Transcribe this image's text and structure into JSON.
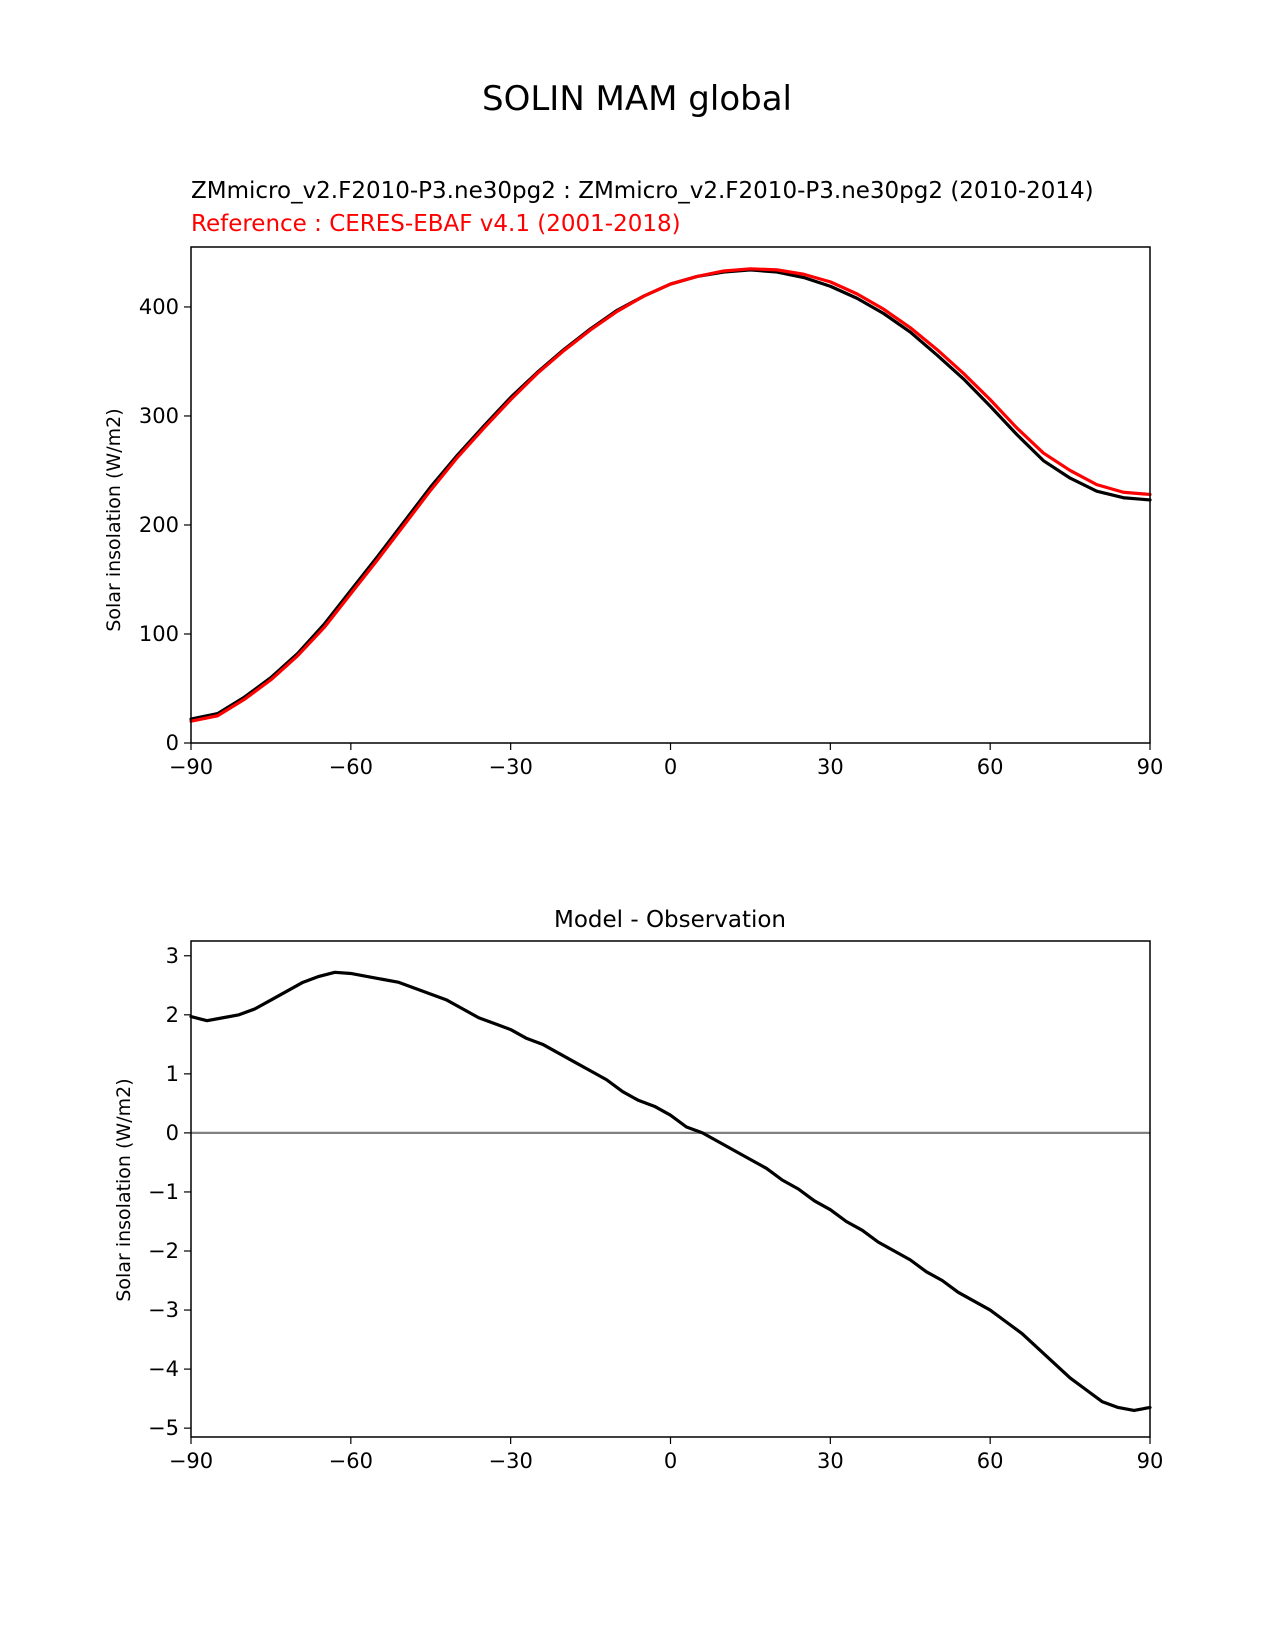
{
  "figure": {
    "suptitle": "SOLIN MAM global"
  },
  "colors": {
    "test": "#000000",
    "reference": "#ff0000",
    "zero_line": "#808080"
  },
  "chart_data": [
    {
      "type": "line",
      "title_left_line1": "ZMmicro_v2.F2010-P3.ne30pg2 : ZMmicro_v2.F2010-P3.ne30pg2 (2010-2014)",
      "title_left_line2": "Reference : CERES-EBAF v4.1 (2001-2018)",
      "xlabel": "",
      "ylabel": "Solar insolation (W/m2)",
      "xlim": [
        -90,
        90
      ],
      "ylim": [
        0,
        455
      ],
      "xticks": [
        -90,
        -60,
        -30,
        0,
        30,
        60,
        90
      ],
      "xtick_labels": [
        "−90",
        "−60",
        "−30",
        "0",
        "30",
        "60",
        "90"
      ],
      "yticks": [
        0,
        100,
        200,
        300,
        400
      ],
      "ytick_labels": [
        "0",
        "100",
        "200",
        "300",
        "400"
      ],
      "series": [
        {
          "color": "#000000",
          "x": [
            -90,
            -85,
            -80,
            -75,
            -70,
            -65,
            -60,
            -55,
            -50,
            -45,
            -40,
            -35,
            -30,
            -25,
            -20,
            -15,
            -10,
            -5,
            0,
            5,
            10,
            15,
            20,
            25,
            30,
            35,
            40,
            45,
            50,
            55,
            60,
            65,
            70,
            75,
            80,
            85,
            90
          ],
          "y": [
            22,
            27,
            42,
            60,
            82,
            109,
            140,
            171,
            203,
            235,
            264,
            291,
            317,
            340,
            361,
            380,
            397,
            410,
            421,
            428,
            432,
            434,
            432,
            427,
            419,
            408,
            394,
            377,
            356,
            334,
            309,
            283,
            259,
            243,
            231,
            225,
            223
          ]
        },
        {
          "color": "#ff0000",
          "x": [
            -90,
            -85,
            -80,
            -75,
            -70,
            -65,
            -60,
            -55,
            -50,
            -45,
            -40,
            -35,
            -30,
            -25,
            -20,
            -15,
            -10,
            -5,
            0,
            5,
            10,
            15,
            20,
            25,
            30,
            35,
            40,
            45,
            50,
            55,
            60,
            65,
            70,
            75,
            80,
            85,
            90
          ],
          "y": [
            20,
            25,
            40,
            58,
            80,
            106,
            137,
            168,
            200,
            232,
            262,
            289,
            315,
            339,
            360,
            379,
            396,
            410,
            421,
            428,
            433,
            435,
            434,
            430,
            423,
            412,
            398,
            381,
            361,
            339,
            315,
            289,
            266,
            250,
            237,
            230,
            228
          ]
        }
      ]
    },
    {
      "type": "line",
      "title": "Model - Observation",
      "xlabel": "",
      "ylabel": "Solar insolation (W/m2)",
      "xlim": [
        -90,
        90
      ],
      "ylim": [
        -5.15,
        3.25
      ],
      "xticks": [
        -90,
        -60,
        -30,
        0,
        30,
        60,
        90
      ],
      "xtick_labels": [
        "−90",
        "−60",
        "−30",
        "0",
        "30",
        "60",
        "90"
      ],
      "yticks": [
        3,
        2,
        1,
        0,
        -1,
        -2,
        -3,
        -4,
        -5
      ],
      "ytick_labels": [
        "3",
        "2",
        "1",
        "0",
        "−1",
        "−2",
        "−3",
        "−4",
        "−5"
      ],
      "hline": 0,
      "series": [
        {
          "color": "#000000",
          "x": [
            -90,
            -87,
            -84,
            -81,
            -78,
            -75,
            -72,
            -69,
            -66,
            -63,
            -60,
            -57,
            -54,
            -51,
            -48,
            -45,
            -42,
            -39,
            -36,
            -33,
            -30,
            -27,
            -24,
            -21,
            -18,
            -15,
            -12,
            -9,
            -6,
            -3,
            0,
            3,
            6,
            9,
            12,
            15,
            18,
            21,
            24,
            27,
            30,
            33,
            36,
            39,
            42,
            45,
            48,
            51,
            54,
            57,
            60,
            63,
            66,
            69,
            72,
            75,
            78,
            81,
            84,
            87,
            90
          ],
          "y": [
            1.97,
            1.9,
            1.95,
            2.0,
            2.1,
            2.25,
            2.4,
            2.55,
            2.65,
            2.72,
            2.7,
            2.65,
            2.6,
            2.55,
            2.45,
            2.35,
            2.25,
            2.1,
            1.95,
            1.85,
            1.75,
            1.6,
            1.5,
            1.35,
            1.2,
            1.05,
            0.9,
            0.7,
            0.55,
            0.45,
            0.3,
            0.1,
            0.0,
            -0.15,
            -0.3,
            -0.45,
            -0.6,
            -0.8,
            -0.95,
            -1.15,
            -1.3,
            -1.5,
            -1.65,
            -1.85,
            -2.0,
            -2.15,
            -2.35,
            -2.5,
            -2.7,
            -2.85,
            -3.0,
            -3.2,
            -3.4,
            -3.65,
            -3.9,
            -4.15,
            -4.35,
            -4.55,
            -4.65,
            -4.7,
            -4.65
          ]
        }
      ]
    }
  ]
}
